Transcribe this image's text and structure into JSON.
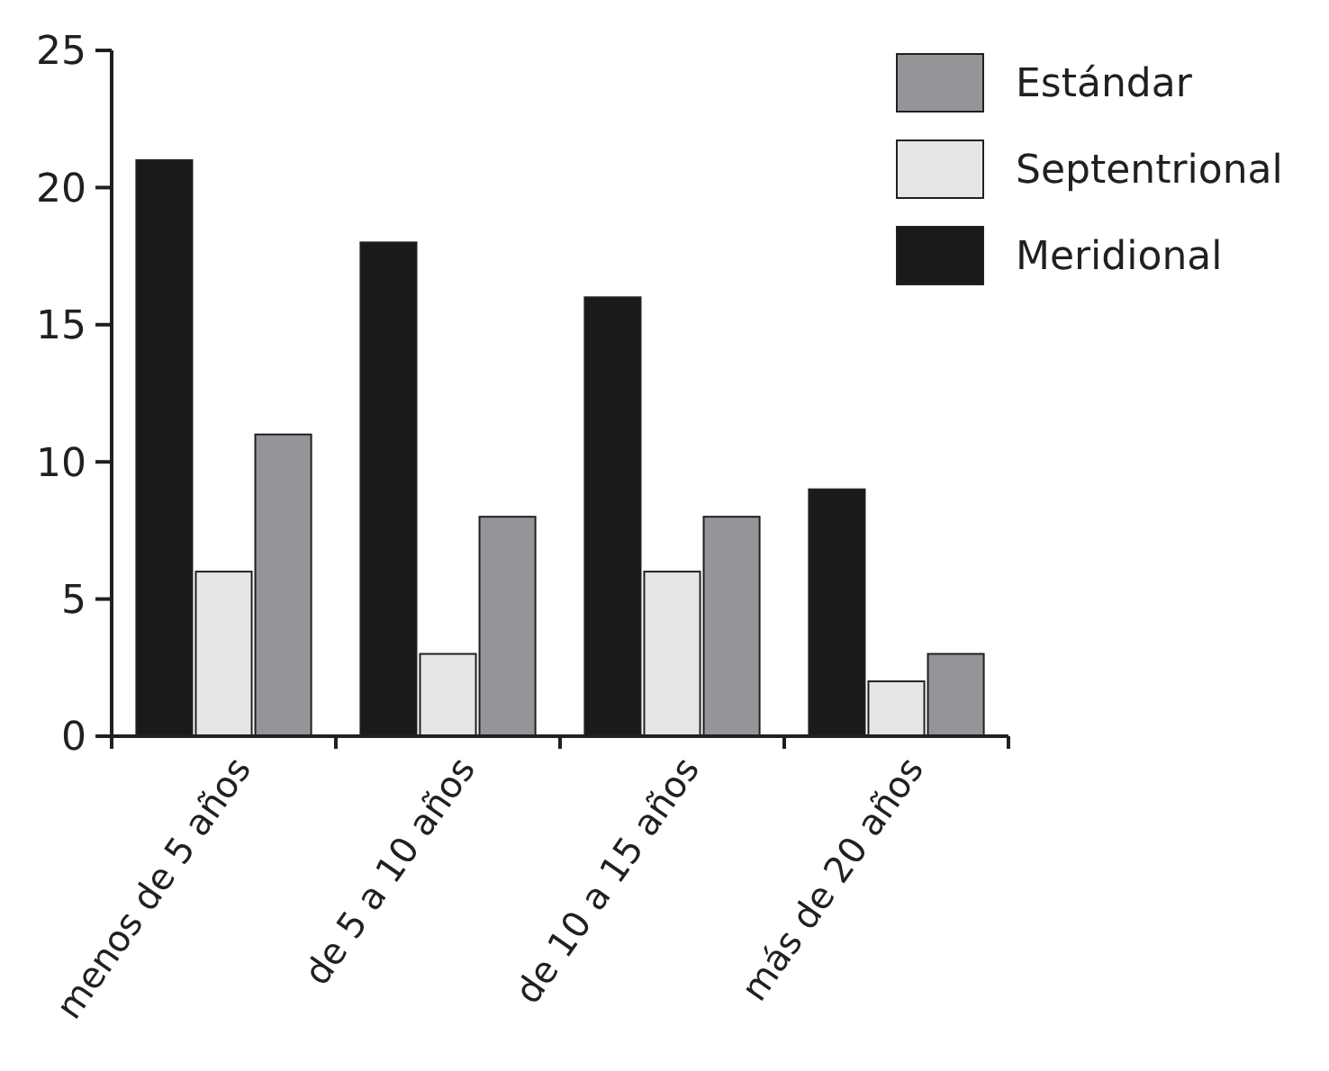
{
  "chart_data": {
    "type": "bar",
    "categories": [
      "menos de 5 años",
      "de 5 a 10 años",
      "de 10 a 15 años",
      "más de 20 años"
    ],
    "series": [
      {
        "name": "Meridional",
        "color": "#1a1a1a",
        "values": [
          21,
          18,
          16,
          9
        ]
      },
      {
        "name": "Septentrional",
        "color": "#e6e6e6",
        "values": [
          6,
          3,
          6,
          2
        ]
      },
      {
        "name": "Estándar",
        "color": "#939598",
        "values": [
          11,
          8,
          8,
          3
        ]
      }
    ],
    "ylim": [
      0,
      25
    ],
    "yticks": [
      0,
      5,
      10,
      15,
      20,
      25
    ],
    "legend": "top right",
    "grid": false
  }
}
